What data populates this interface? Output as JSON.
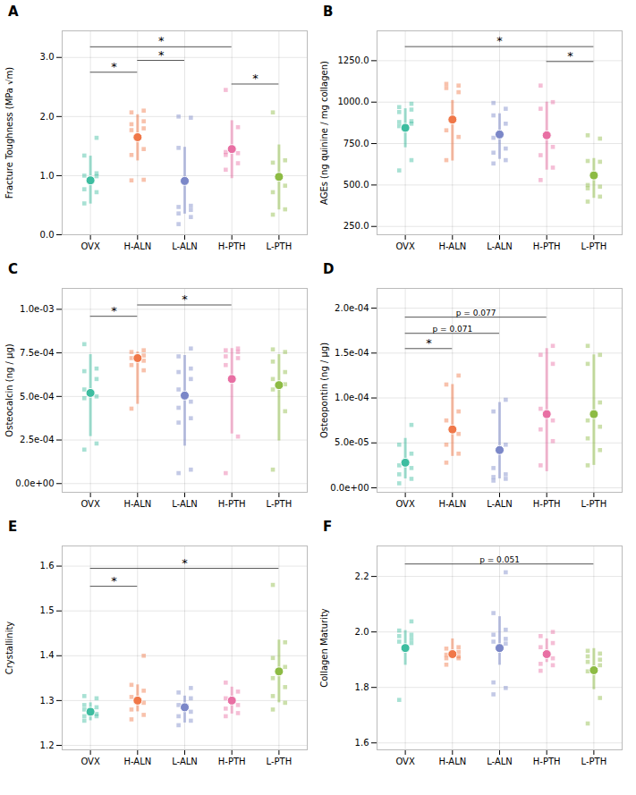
{
  "chart_data": [
    {
      "type": "strip",
      "title": "A",
      "ylabel": "Fracture Toughness (MPa √m)",
      "categories": [
        "OVX",
        "H-ALN",
        "L-ALN",
        "H-PTH",
        "L-PTH"
      ],
      "colors": [
        "#3DBDA0",
        "#F07748",
        "#7B87C8",
        "#E86FA3",
        "#8DBB44"
      ],
      "values": [
        0.92,
        1.65,
        0.91,
        1.45,
        0.98
      ],
      "ci_low": [
        0.52,
        1.25,
        0.35,
        0.95,
        0.42
      ],
      "ci_high": [
        1.33,
        2.03,
        1.48,
        1.93,
        1.52
      ],
      "points": [
        [
          0.53,
          0.72,
          0.77,
          0.99,
          1.0,
          1.04,
          1.34,
          1.64
        ],
        [
          0.92,
          0.93,
          1.35,
          1.45,
          1.77,
          1.8,
          1.87,
          1.92,
          2.07,
          2.1
        ],
        [
          0.18,
          0.3,
          0.36,
          0.42,
          0.47,
          0.49,
          1.47,
          1.98,
          2.0
        ],
        [
          1.1,
          1.21,
          1.35,
          1.38,
          1.4,
          1.82,
          2.45
        ],
        [
          0.34,
          0.43,
          0.72,
          0.83,
          1.22,
          1.26,
          2.07
        ]
      ],
      "brackets": [
        {
          "from": "OVX",
          "to": "H-ALN",
          "y": 2.75,
          "label": "*"
        },
        {
          "from": "H-ALN",
          "to": "L-ALN",
          "y": 2.95,
          "label": "*"
        },
        {
          "from": "OVX",
          "to": "H-PTH",
          "y": 3.18,
          "label": "*"
        },
        {
          "from": "H-PTH",
          "to": "L-PTH",
          "y": 2.55,
          "label": "*"
        }
      ],
      "ylim": [
        0.0,
        3.45
      ],
      "yticks": [
        {
          "value": 0.0,
          "label": "0.0"
        },
        {
          "value": 1.0,
          "label": "1.0"
        },
        {
          "value": 2.0,
          "label": "2.0"
        },
        {
          "value": 3.0,
          "label": "3.0"
        }
      ],
      "grid": true
    },
    {
      "type": "strip",
      "title": "B",
      "ylabel": "AGEs (ng quinine / mg collagen)",
      "categories": [
        "OVX",
        "H-ALN",
        "L-ALN",
        "H-PTH",
        "L-PTH"
      ],
      "colors": [
        "#3DBDA0",
        "#F07748",
        "#7B87C8",
        "#E86FA3",
        "#8DBB44"
      ],
      "values": [
        845,
        895,
        805,
        800,
        558
      ],
      "ci_low": [
        725,
        645,
        655,
        590,
        420
      ],
      "ci_high": [
        960,
        1010,
        930,
        1000,
        660
      ],
      "points": [
        [
          588,
          650,
          855,
          870,
          880,
          885,
          940,
          955,
          970,
          990
        ],
        [
          650,
          790,
          830,
          1060,
          1085,
          1100,
          1110
        ],
        [
          630,
          650,
          695,
          720,
          785,
          870,
          920,
          960,
          995
        ],
        [
          530,
          605,
          680,
          730,
          960,
          1000,
          1100
        ],
        [
          400,
          430,
          480,
          490,
          500,
          640,
          645,
          780,
          800
        ]
      ],
      "brackets": [
        {
          "from": "OVX",
          "to": "L-PTH",
          "y": 1335,
          "label": "*"
        },
        {
          "from": "H-PTH",
          "to": "L-PTH",
          "y": 1245,
          "label": "*"
        }
      ],
      "ylim": [
        200,
        1430
      ],
      "yticks": [
        {
          "value": 250.0,
          "label": "250.0"
        },
        {
          "value": 500.0,
          "label": "500.0"
        },
        {
          "value": 750.0,
          "label": "750.0"
        },
        {
          "value": 1000.0,
          "label": "1000.0"
        },
        {
          "value": 1250.0,
          "label": "1250.0"
        }
      ],
      "grid": true
    },
    {
      "type": "strip",
      "title": "C",
      "ylabel": "Osteocalcin (ng / μg)",
      "categories": [
        "OVX",
        "H-ALN",
        "L-ALN",
        "H-PTH",
        "L-PTH"
      ],
      "colors": [
        "#3DBDA0",
        "#F07748",
        "#7B87C8",
        "#E86FA3",
        "#8DBB44"
      ],
      "values": [
        0.00052,
        0.00072,
        0.000505,
        0.0006,
        0.000565
      ],
      "ci_low": [
        0.00027,
        0.000455,
        0.000215,
        0.000285,
        0.000245
      ],
      "ci_high": [
        0.00074,
        0.000755,
        0.000735,
        0.000775,
        0.00074
      ],
      "points": [
        [
          0.000195,
          0.00023,
          0.00049,
          0.0005,
          0.00054,
          0.0006,
          0.000645,
          0.00066,
          0.0008
        ],
        [
          0.00043,
          0.00065,
          0.00068,
          0.000705,
          0.00072,
          0.000735,
          0.000755,
          0.000765
        ],
        [
          6e-05,
          8e-05,
          0.00035,
          0.000375,
          0.000435,
          0.00047,
          0.00054,
          0.0006,
          0.00064,
          0.00066,
          0.00073,
          0.000775
        ],
        [
          6e-05,
          0.00027,
          0.00068,
          0.00072,
          0.00073,
          0.000755,
          0.000765,
          0.000775
        ],
        [
          8e-05,
          0.000415,
          0.00054,
          0.00057,
          0.0006,
          0.00064,
          0.0007,
          0.000755,
          0.00077
        ]
      ],
      "brackets": [
        {
          "from": "OVX",
          "to": "H-ALN",
          "y": 0.00096,
          "label": "*"
        },
        {
          "from": "H-ALN",
          "to": "H-PTH",
          "y": 0.001025,
          "label": "*"
        }
      ],
      "ylim": [
        -5e-05,
        0.00112
      ],
      "yticks": [
        {
          "value": 0.0,
          "label": "0.0e+00"
        },
        {
          "value": 0.00025,
          "label": "2.5e-04"
        },
        {
          "value": 0.0005,
          "label": "5.0e-04"
        },
        {
          "value": 0.00075,
          "label": "7.5e-04"
        },
        {
          "value": 0.001,
          "label": "1.0e-03"
        }
      ],
      "grid": true
    },
    {
      "type": "strip",
      "title": "D",
      "ylabel": "Osteopontin (ng / μg)",
      "categories": [
        "OVX",
        "H-ALN",
        "L-ALN",
        "H-PTH",
        "L-PTH"
      ],
      "colors": [
        "#3DBDA0",
        "#F07748",
        "#7B87C8",
        "#E86FA3",
        "#8DBB44"
      ],
      "values": [
        2.8e-05,
        6.5e-05,
        4.2e-05,
        8.2e-05,
        8.2e-05
      ],
      "ci_low": [
        1e-05,
        3.5e-05,
        1e-05,
        1.8e-05,
        2.5e-05
      ],
      "ci_high": [
        5.5e-05,
        0.000115,
        9.5e-05,
        0.000155,
        0.000148
      ],
      "points": [
        [
          5e-06,
          1e-05,
          1.5e-05,
          2.2e-05,
          2.5e-05,
          3.8e-05,
          4.8e-05,
          7e-05
        ],
        [
          2.8e-05,
          3.8e-05,
          4.8e-05,
          6e-05,
          7.5e-05,
          8.5e-05,
          0.000115,
          0.000125
        ],
        [
          8e-06,
          1e-05,
          1.2e-05,
          1.5e-05,
          2.2e-05,
          4.8e-05,
          8.5e-05,
          9.8e-05
        ],
        [
          2.5e-05,
          5.2e-05,
          6.5e-05,
          7.5e-05,
          8.8e-05,
          0.000138,
          0.000148,
          0.000158
        ],
        [
          2.5e-05,
          4.2e-05,
          5.5e-05,
          6.8e-05,
          7.5e-05,
          9.5e-05,
          0.000138,
          0.000148,
          0.000158
        ]
      ],
      "brackets": [
        {
          "from": "OVX",
          "to": "H-ALN",
          "y": 0.000155,
          "label": "*"
        },
        {
          "from": "OVX",
          "to": "L-ALN",
          "y": 0.000172,
          "label": "p = 0.071"
        },
        {
          "from": "OVX",
          "to": "H-PTH",
          "y": 0.00019,
          "label": "p = 0.077"
        }
      ],
      "ylim": [
        -5e-06,
        0.000222
      ],
      "yticks": [
        {
          "value": 0.0,
          "label": "0.0e+00"
        },
        {
          "value": 5e-05,
          "label": "5.0e-05"
        },
        {
          "value": 0.0001,
          "label": "1.0e-04"
        },
        {
          "value": 0.00015,
          "label": "1.5e-04"
        },
        {
          "value": 0.0002,
          "label": "2.0e-04"
        }
      ],
      "grid": true
    },
    {
      "type": "strip",
      "title": "E",
      "ylabel": "Crystallinity",
      "categories": [
        "OVX",
        "H-ALN",
        "L-ALN",
        "H-PTH",
        "L-PTH"
      ],
      "colors": [
        "#3DBDA0",
        "#F07748",
        "#7B87C8",
        "#E86FA3",
        "#8DBB44"
      ],
      "values": [
        1.275,
        1.3,
        1.285,
        1.3,
        1.365
      ],
      "ci_low": [
        1.255,
        1.275,
        1.25,
        1.27,
        1.295
      ],
      "ci_high": [
        1.295,
        1.335,
        1.31,
        1.33,
        1.435
      ],
      "points": [
        [
          1.255,
          1.265,
          1.265,
          1.27,
          1.28,
          1.285,
          1.29,
          1.305,
          1.31
        ],
        [
          1.258,
          1.268,
          1.28,
          1.295,
          1.308,
          1.322,
          1.335,
          1.4
        ],
        [
          1.245,
          1.255,
          1.265,
          1.275,
          1.29,
          1.305,
          1.318,
          1.328
        ],
        [
          1.265,
          1.272,
          1.282,
          1.29,
          1.305,
          1.32,
          1.34
        ],
        [
          1.28,
          1.295,
          1.31,
          1.33,
          1.35,
          1.375,
          1.395,
          1.43,
          1.558
        ]
      ],
      "brackets": [
        {
          "from": "OVX",
          "to": "H-ALN",
          "y": 1.555,
          "label": "*"
        },
        {
          "from": "OVX",
          "to": "L-PTH",
          "y": 1.595,
          "label": "*"
        }
      ],
      "ylim": [
        1.19,
        1.645
      ],
      "yticks": [
        1.2,
        1.3,
        1.4,
        1.5,
        1.6
      ],
      "grid": true
    },
    {
      "type": "strip",
      "title": "F",
      "ylabel": "Collagen Maturity",
      "categories": [
        "OVX",
        "H-ALN",
        "L-ALN",
        "H-PTH",
        "L-PTH"
      ],
      "colors": [
        "#3DBDA0",
        "#F07748",
        "#7B87C8",
        "#E86FA3",
        "#8DBB44"
      ],
      "values": [
        1.942,
        1.92,
        1.942,
        1.92,
        1.862
      ],
      "ci_low": [
        1.88,
        1.905,
        1.88,
        1.89,
        1.792
      ],
      "ci_high": [
        2.005,
        1.975,
        2.055,
        1.975,
        1.94
      ],
      "points": [
        [
          1.755,
          1.96,
          1.965,
          1.975,
          1.985,
          1.99,
          2.005,
          2.038
        ],
        [
          1.882,
          1.905,
          1.905,
          1.912,
          1.918,
          1.928,
          1.94,
          1.945
        ],
        [
          1.775,
          1.798,
          1.818,
          1.958,
          1.965,
          1.975,
          1.99,
          2.008,
          2.068,
          2.215
        ],
        [
          1.86,
          1.88,
          1.885,
          1.905,
          1.945,
          1.96,
          1.985,
          2.0
        ],
        [
          1.67,
          1.762,
          1.858,
          1.88,
          1.892,
          1.9,
          1.912,
          1.922,
          1.932
        ]
      ],
      "brackets": [
        {
          "from": "OVX",
          "to": "L-PTH",
          "y": 2.245,
          "label": "p = 0.051"
        }
      ],
      "ylim": [
        1.575,
        2.31
      ],
      "yticks": [
        {
          "value": 1.6,
          "label": "1.6"
        },
        {
          "value": 1.8,
          "label": "1.8"
        },
        {
          "value": 2.0,
          "label": "2.0"
        },
        {
          "value": 2.2,
          "label": "2.2"
        }
      ],
      "grid": true
    }
  ]
}
